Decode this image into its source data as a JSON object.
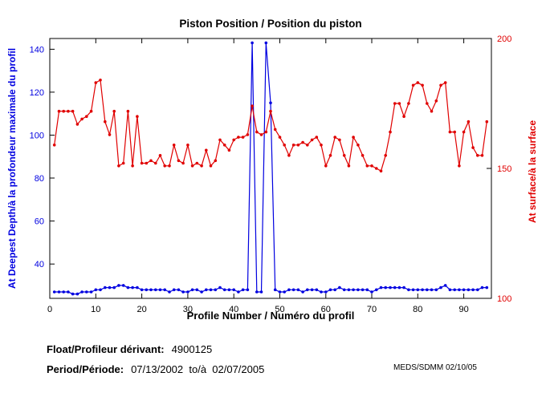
{
  "footer": {
    "float_label": "Float/Profileur dérivant:",
    "float_value": "4900125",
    "period_label": "Period/Période:",
    "period_value": "07/13/2002  to/à  02/07/2005",
    "credit": "MEDS/SDMM  02/10/05"
  },
  "colors": {
    "blue": "#0000e0",
    "red": "#e00000",
    "axis": "#000000",
    "background": "#ffffff"
  },
  "chart_data": {
    "type": "line",
    "title": "Piston Position / Position du piston",
    "xlabel": "Profile Number / Numéro du profil",
    "ylabel_left": "At Deepest Depth/à la profondeur maximale du profil",
    "ylabel_right": "At surface/à la surface",
    "grid": false,
    "legend": "none",
    "x_range": [
      0,
      96
    ],
    "x_ticks": [
      0,
      10,
      20,
      30,
      40,
      50,
      60,
      70,
      80,
      90
    ],
    "left_axis": {
      "range": [
        24,
        145
      ],
      "ticks": [
        40,
        60,
        80,
        100,
        120,
        140
      ],
      "color": "#0000e0"
    },
    "right_axis": {
      "range": [
        100,
        200
      ],
      "ticks": [
        100,
        150,
        200
      ],
      "color": "#e00000"
    },
    "series": [
      {
        "name": "deepest-depth",
        "label": "Piston position at deepest depth",
        "axis": "left",
        "color": "#0000e0",
        "x_start": 1,
        "values": [
          27,
          27,
          27,
          27,
          26,
          26,
          27,
          27,
          27,
          28,
          28,
          29,
          29,
          29,
          30,
          30,
          29,
          29,
          29,
          28,
          28,
          28,
          28,
          28,
          28,
          27,
          28,
          28,
          27,
          27,
          28,
          28,
          27,
          28,
          28,
          28,
          29,
          28,
          28,
          28,
          27,
          28,
          28,
          143,
          27,
          27,
          143,
          115,
          28,
          27,
          27,
          28,
          28,
          28,
          27,
          28,
          28,
          28,
          27,
          27,
          28,
          28,
          29,
          28,
          28,
          28,
          28,
          28,
          28,
          27,
          28,
          29,
          29,
          29,
          29,
          29,
          29,
          28,
          28,
          28,
          28,
          28,
          28,
          28,
          29,
          30,
          28,
          28,
          28,
          28,
          28,
          28,
          28,
          29,
          29
        ]
      },
      {
        "name": "surface",
        "label": "Piston position at surface",
        "axis": "right",
        "color": "#e00000",
        "x_start": 1,
        "values": [
          159,
          172,
          172,
          172,
          172,
          167,
          169,
          170,
          172,
          183,
          184,
          168,
          163,
          172,
          151,
          152,
          172,
          151,
          170,
          152,
          152,
          153,
          152,
          155,
          151,
          151,
          159,
          153,
          152,
          159,
          151,
          152,
          151,
          157,
          151,
          153,
          161,
          159,
          157,
          161,
          162,
          162,
          163,
          174,
          164,
          163,
          164,
          172,
          165,
          162,
          159,
          155,
          159,
          159,
          160,
          159,
          161,
          162,
          159,
          151,
          155,
          162,
          161,
          155,
          151,
          162,
          159,
          155,
          151,
          151,
          150,
          149,
          155,
          164,
          175,
          175,
          170,
          175,
          182,
          183,
          182,
          175,
          172,
          176,
          182,
          183,
          164,
          164,
          151,
          164,
          168,
          158,
          155,
          155,
          168
        ]
      }
    ]
  }
}
